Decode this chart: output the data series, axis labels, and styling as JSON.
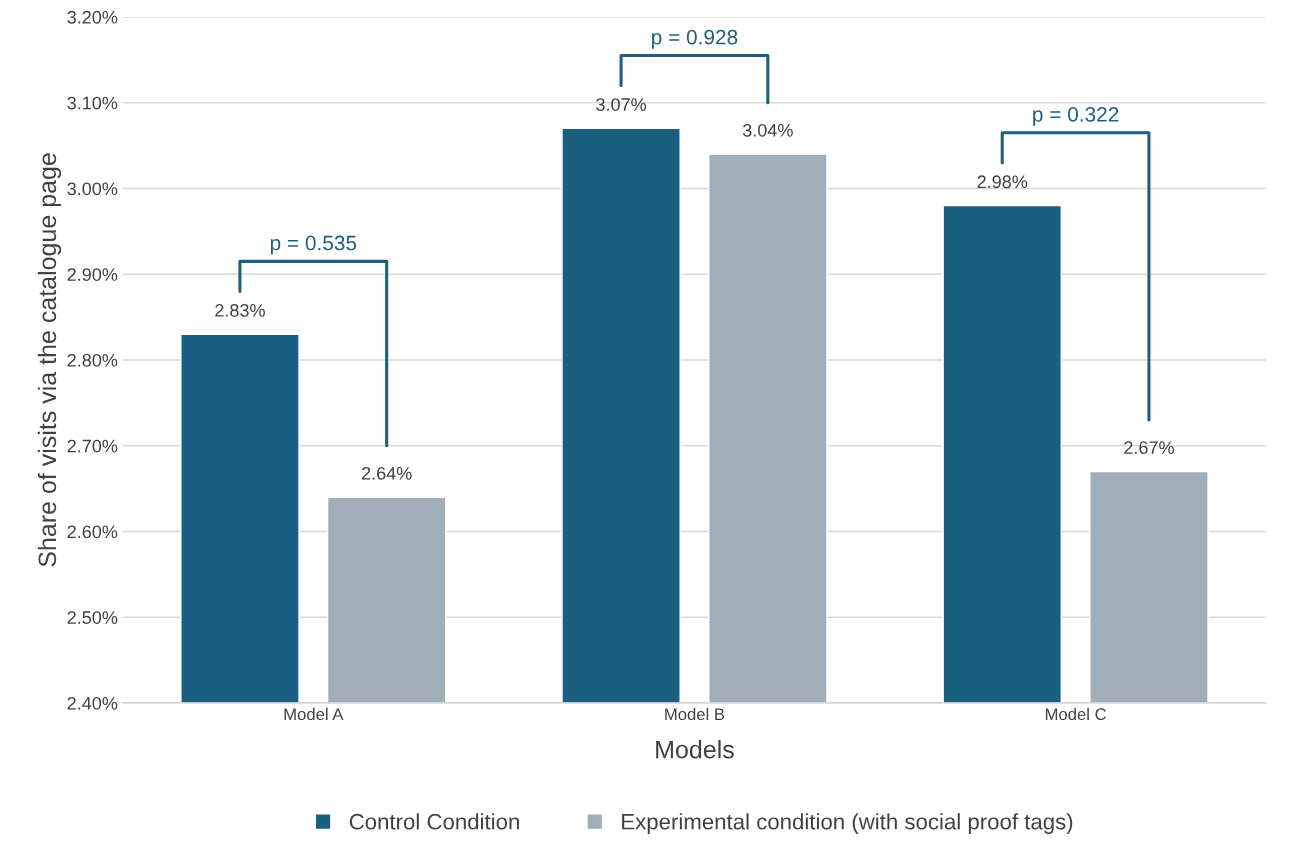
{
  "chart_data": {
    "type": "bar",
    "xlabel": "Models",
    "ylabel": "Share of visits via the catalogue page",
    "categories": [
      "Model A",
      "Model B",
      "Model C"
    ],
    "series": [
      {
        "name": "Control Condition",
        "color": "#1a5f80",
        "values": [
          2.83,
          3.07,
          2.98
        ],
        "value_labels": [
          "2.83%",
          "3.07%",
          "2.98%"
        ]
      },
      {
        "name": "Experimental condition (with social proof tags)",
        "color": "#a0aeba",
        "values": [
          2.64,
          3.04,
          2.67
        ],
        "value_labels": [
          "2.64%",
          "3.04%",
          "2.67%"
        ]
      }
    ],
    "ylim": [
      2.4,
      3.2
    ],
    "yticks": [
      {
        "value": 2.4,
        "label": "2.40%"
      },
      {
        "value": 2.5,
        "label": "2.50%"
      },
      {
        "value": 2.6,
        "label": "2.60%"
      },
      {
        "value": 2.7,
        "label": "2.70%"
      },
      {
        "value": 2.8,
        "label": "2.80%"
      },
      {
        "value": 2.9,
        "label": "2.90%"
      },
      {
        "value": 3.0,
        "label": "3.00%"
      },
      {
        "value": 3.1,
        "label": "3.10%"
      },
      {
        "value": 3.2,
        "label": "3.20%"
      }
    ],
    "annotations": [
      "p = 0.535",
      "p = 0.928",
      "p = 0.322"
    ],
    "grid": "y",
    "legend": "bottom"
  }
}
